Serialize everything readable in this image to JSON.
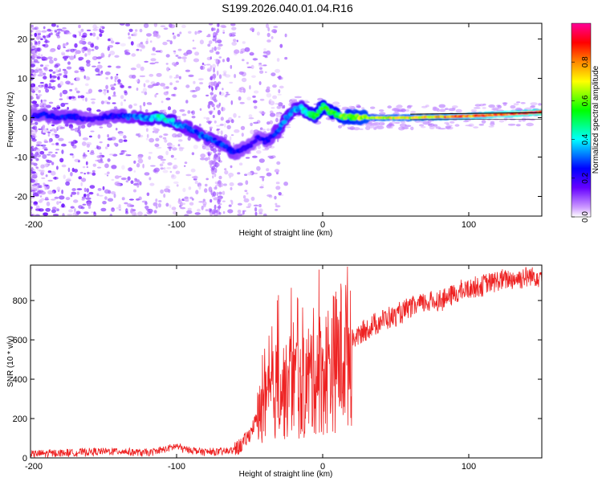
{
  "title": "S199.2026.040.01.04.R16",
  "chart_data": [
    {
      "type": "heatmap",
      "title": "S199.2026.040.01.04.R16",
      "xlabel": "Height of straight line (km)",
      "ylabel": "Frequency (Hz)",
      "xlim": [
        -200,
        150
      ],
      "ylim": [
        -25,
        24
      ],
      "xticks": [
        -200,
        -100,
        0,
        100
      ],
      "yticks": [
        -20,
        -10,
        0,
        10,
        20
      ],
      "colorbar": {
        "label": "Normalized spectral amplitude",
        "range": [
          0,
          1
        ],
        "ticks": [
          0.0,
          0.2,
          0.4,
          0.6,
          0.8
        ],
        "tick_labels": [
          "0.0",
          "0.2",
          "0.4",
          "0.6",
          "0.8"
        ],
        "colormap": [
          "#ffffff",
          "#cc99ff",
          "#6600ff",
          "#0000ff",
          "#00ffff",
          "#00ff00",
          "#ffff00",
          "#ff8800",
          "#ff0000",
          "#ff0099"
        ]
      },
      "ridge": {
        "x": [
          -200,
          -190,
          -180,
          -170,
          -160,
          -150,
          -140,
          -130,
          -120,
          -110,
          -100,
          -90,
          -80,
          -70,
          -60,
          -55,
          -50,
          -45,
          -40,
          -35,
          -30,
          -25,
          -20,
          -15,
          -10,
          -5,
          0,
          5,
          10,
          15,
          20,
          30,
          40,
          50,
          60,
          70,
          80,
          90,
          100,
          110,
          120,
          130,
          140,
          150
        ],
        "frequency": [
          0.5,
          0.8,
          0.0,
          0.3,
          -0.5,
          0.2,
          0.5,
          0.2,
          0.0,
          0.0,
          -1.5,
          -3.0,
          -5.0,
          -6.5,
          -9.0,
          -8.0,
          -7.0,
          -5.0,
          -6.0,
          -5.0,
          -3.0,
          0.0,
          2.0,
          2.5,
          1.0,
          0.5,
          3.0,
          1.5,
          0.5,
          0.3,
          0.2,
          0.0,
          0.0,
          0.0,
          0.0,
          0.1,
          0.2,
          0.3,
          0.4,
          0.6,
          0.8,
          1.0,
          1.2,
          1.5
        ],
        "amplitude": [
          0.2,
          0.25,
          0.25,
          0.25,
          0.2,
          0.22,
          0.25,
          0.3,
          0.35,
          0.45,
          0.35,
          0.3,
          0.3,
          0.28,
          0.25,
          0.22,
          0.2,
          0.2,
          0.22,
          0.25,
          0.3,
          0.35,
          0.35,
          0.4,
          0.45,
          0.5,
          0.55,
          0.5,
          0.55,
          0.6,
          0.6,
          0.65,
          0.68,
          0.7,
          0.7,
          0.72,
          0.75,
          0.8,
          0.82,
          0.85,
          0.88,
          0.9,
          0.92,
          0.95
        ]
      }
    },
    {
      "type": "line",
      "xlabel": "Height of straight line (km)",
      "ylabel": "SNR (10 * v/v)",
      "xlim": [
        -200,
        150
      ],
      "ylim": [
        0,
        980
      ],
      "xticks": [
        -200,
        -100,
        0,
        100
      ],
      "yticks": [
        0,
        200,
        400,
        600,
        800
      ],
      "color": "#ee2222",
      "series": [
        {
          "name": "SNR",
          "x": [
            -200,
            -180,
            -160,
            -140,
            -120,
            -110,
            -100,
            -95,
            -90,
            -80,
            -70,
            -60,
            -55,
            -50,
            -45,
            -40,
            -35,
            -30,
            -25,
            -20,
            -15,
            -10,
            -5,
            0,
            5,
            10,
            15,
            20,
            30,
            40,
            50,
            60,
            70,
            80,
            90,
            100,
            110,
            120,
            130,
            140,
            150
          ],
          "y": [
            20,
            25,
            30,
            35,
            25,
            40,
            60,
            45,
            40,
            30,
            30,
            40,
            70,
            120,
            200,
            250,
            300,
            380,
            330,
            420,
            330,
            400,
            450,
            420,
            480,
            500,
            550,
            600,
            650,
            700,
            720,
            760,
            790,
            800,
            830,
            860,
            880,
            900,
            910,
            920,
            930
          ]
        }
      ]
    }
  ]
}
